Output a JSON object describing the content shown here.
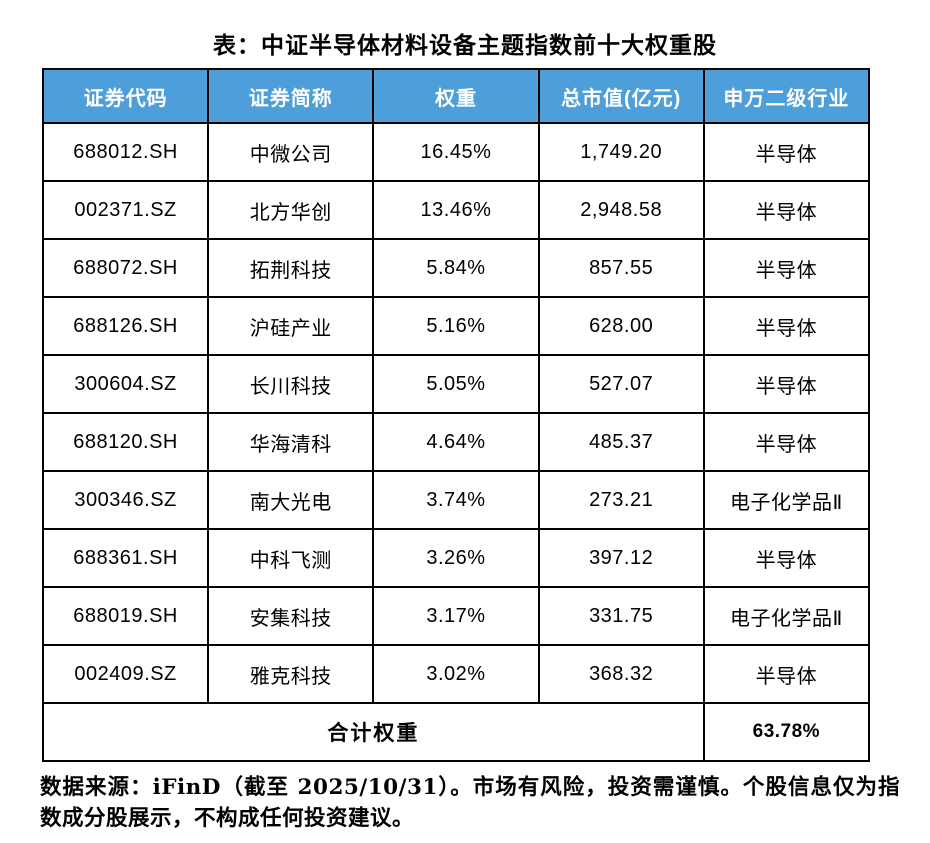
{
  "chart_data": {
    "type": "table",
    "title": "表：中证半导体材料设备主题指数前十大权重股",
    "columns": [
      "证券代码",
      "证券简称",
      "权重",
      "总市值(亿元)",
      "申万二级行业"
    ],
    "rows": [
      [
        "688012.SH",
        "中微公司",
        "16.45%",
        "1,749.20",
        "半导体"
      ],
      [
        "002371.SZ",
        "北方华创",
        "13.46%",
        "2,948.58",
        "半导体"
      ],
      [
        "688072.SH",
        "拓荆科技",
        "5.84%",
        "857.55",
        "半导体"
      ],
      [
        "688126.SH",
        "沪硅产业",
        "5.16%",
        "628.00",
        "半导体"
      ],
      [
        "300604.SZ",
        "长川科技",
        "5.05%",
        "527.07",
        "半导体"
      ],
      [
        "688120.SH",
        "华海清科",
        "4.64%",
        "485.37",
        "半导体"
      ],
      [
        "300346.SZ",
        "南大光电",
        "3.74%",
        "273.21",
        "电子化学品Ⅱ"
      ],
      [
        "688361.SH",
        "中科飞测",
        "3.26%",
        "397.12",
        "半导体"
      ],
      [
        "688019.SH",
        "安集科技",
        "3.17%",
        "331.75",
        "电子化学品Ⅱ"
      ],
      [
        "002409.SZ",
        "雅克科技",
        "3.02%",
        "368.32",
        "半导体"
      ]
    ],
    "total_row": {
      "label": "合计权重",
      "value": "63.78%"
    },
    "source_note": "数据来源：iFinD（截至 2025/10/31）。市场有风险，投资需谨慎。个股信息仅为指数成分股展示，不构成任何投资建议。",
    "layout": {
      "grid": "on",
      "header_position": "top"
    }
  },
  "colors": {
    "header_bg": "#4E9FD9",
    "header_text": "#FFFFFF",
    "body_bg": "#FFFFFF",
    "border": "#000000",
    "text": "#000000"
  }
}
